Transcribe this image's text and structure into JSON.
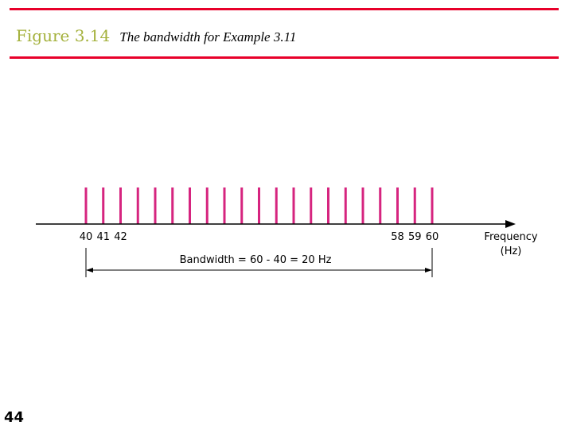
{
  "colors": {
    "rule": "#e8002a",
    "figure_label": "#a4b13c",
    "frequency_bars": "#d6247f",
    "axis": "#000000"
  },
  "header": {
    "figure_label": "Figure 3.14",
    "caption": "The bandwidth for Example 3.11"
  },
  "chart_data": {
    "type": "bar",
    "x": [
      40,
      41,
      42,
      43,
      44,
      45,
      46,
      47,
      48,
      49,
      50,
      51,
      52,
      53,
      54,
      55,
      56,
      57,
      58,
      59,
      60
    ],
    "tick_labels_left": [
      "40",
      "41",
      "42"
    ],
    "tick_labels_right": [
      "58",
      "59",
      "60"
    ],
    "xlabel_line1": "Frequency",
    "xlabel_line2": "(Hz)",
    "annotation": "Bandwidth = 60 - 40 = 20 Hz"
  },
  "footer": {
    "page_number": "44"
  }
}
